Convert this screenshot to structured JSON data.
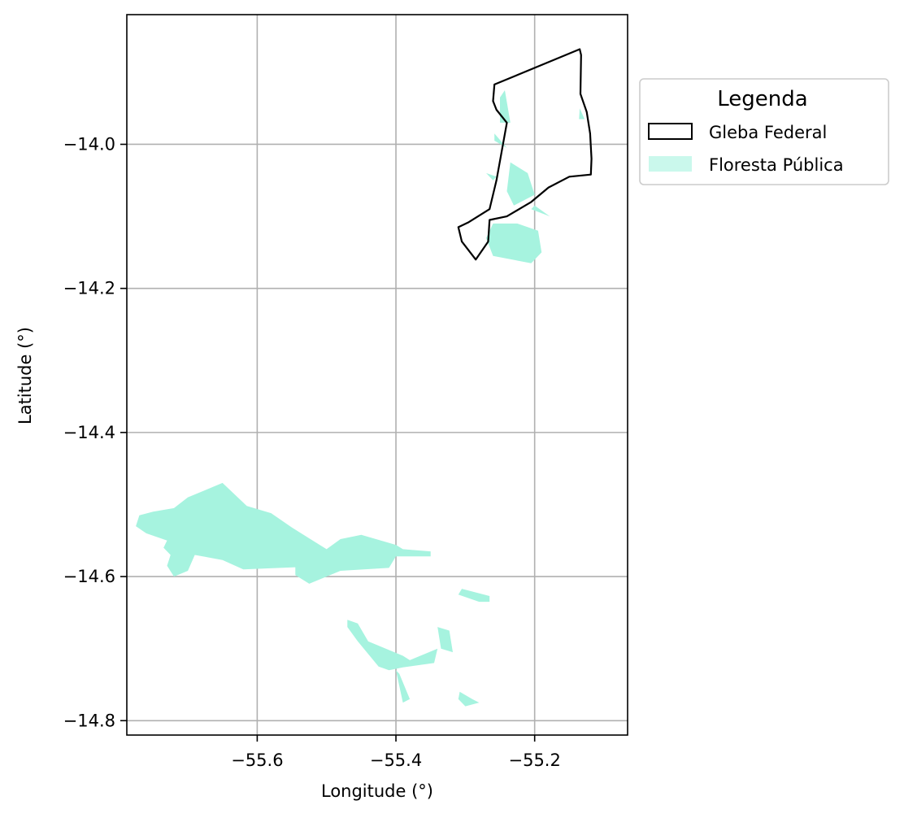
{
  "chart_data": {
    "type": "map",
    "xlabel": "Longitude (°)",
    "ylabel": "Latitude (°)",
    "xlim": [
      -55.788,
      -55.066
    ],
    "ylim": [
      -14.82,
      -13.82
    ],
    "xticks": [
      -55.6,
      -55.4,
      -55.2
    ],
    "xtick_labels": [
      "−55.6",
      "−55.4",
      "−55.2"
    ],
    "yticks": [
      -14.0,
      -14.2,
      -14.4,
      -14.6,
      -14.8
    ],
    "ytick_labels": [
      "−14.0",
      "−14.2",
      "−14.4",
      "−14.6",
      "−14.8"
    ],
    "grid": true,
    "legend": {
      "title": "Legenda",
      "placement": "outside upper right",
      "entries": [
        {
          "label": "Gleba Federal",
          "style": "outline",
          "color": "#000000"
        },
        {
          "label": "Floresta Pública",
          "style": "fill",
          "color": "#a6f3df"
        }
      ]
    },
    "colors": {
      "floresta": "#a6f3df",
      "gleba_edge": "#000000",
      "grid": "#b0b0b0"
    },
    "gleba_federal": [
      [
        -55.258,
        -13.917
      ],
      [
        -55.135,
        -13.868
      ],
      [
        -55.133,
        -13.876
      ],
      [
        -55.134,
        -13.93
      ],
      [
        -55.125,
        -13.955
      ],
      [
        -55.12,
        -13.985
      ],
      [
        -55.118,
        -14.02
      ],
      [
        -55.119,
        -14.042
      ],
      [
        -55.15,
        -14.045
      ],
      [
        -55.18,
        -14.06
      ],
      [
        -55.205,
        -14.08
      ],
      [
        -55.24,
        -14.1
      ],
      [
        -55.265,
        -14.105
      ],
      [
        -55.267,
        -14.135
      ],
      [
        -55.285,
        -14.16
      ],
      [
        -55.305,
        -14.135
      ],
      [
        -55.31,
        -14.115
      ],
      [
        -55.295,
        -14.108
      ],
      [
        -55.265,
        -14.09
      ],
      [
        -55.255,
        -14.05
      ],
      [
        -55.24,
        -13.97
      ],
      [
        -55.255,
        -13.952
      ],
      [
        -55.26,
        -13.94
      ],
      [
        -55.258,
        -13.917
      ]
    ],
    "floresta_publica": [
      [
        [
          -55.25,
          -13.935
        ],
        [
          -55.243,
          -13.925
        ],
        [
          -55.235,
          -13.97
        ],
        [
          -55.25,
          -13.97
        ]
      ],
      [
        [
          -55.258,
          -13.995
        ],
        [
          -55.24,
          -14.005
        ],
        [
          -55.258,
          -13.985
        ]
      ],
      [
        [
          -55.27,
          -14.04
        ],
        [
          -55.255,
          -14.045
        ],
        [
          -55.26,
          -14.05
        ]
      ],
      [
        [
          -55.235,
          -14.025
        ],
        [
          -55.21,
          -14.04
        ],
        [
          -55.2,
          -14.07
        ],
        [
          -55.23,
          -14.085
        ],
        [
          -55.24,
          -14.065
        ]
      ],
      [
        [
          -55.2,
          -14.085
        ],
        [
          -55.178,
          -14.1
        ],
        [
          -55.205,
          -14.09
        ]
      ],
      [
        [
          -55.135,
          -13.95
        ],
        [
          -55.128,
          -13.965
        ],
        [
          -55.136,
          -13.965
        ]
      ],
      [
        [
          -55.26,
          -14.11
        ],
        [
          -55.225,
          -14.11
        ],
        [
          -55.195,
          -14.12
        ],
        [
          -55.19,
          -14.15
        ],
        [
          -55.205,
          -14.165
        ],
        [
          -55.26,
          -14.155
        ],
        [
          -55.27,
          -14.13
        ]
      ],
      [
        [
          -55.77,
          -14.515
        ],
        [
          -55.75,
          -14.51
        ],
        [
          -55.72,
          -14.505
        ],
        [
          -55.7,
          -14.49
        ],
        [
          -55.67,
          -14.478
        ],
        [
          -55.65,
          -14.47
        ],
        [
          -55.615,
          -14.502
        ],
        [
          -55.58,
          -14.512
        ],
        [
          -55.55,
          -14.532
        ],
        [
          -55.5,
          -14.562
        ],
        [
          -55.48,
          -14.548
        ],
        [
          -55.45,
          -14.542
        ],
        [
          -55.4,
          -14.556
        ],
        [
          -55.39,
          -14.562
        ],
        [
          -55.35,
          -14.565
        ],
        [
          -55.35,
          -14.572
        ],
        [
          -55.4,
          -14.572
        ],
        [
          -55.41,
          -14.588
        ],
        [
          -55.48,
          -14.592
        ],
        [
          -55.525,
          -14.61
        ],
        [
          -55.545,
          -14.598
        ],
        [
          -55.545,
          -14.587
        ],
        [
          -55.62,
          -14.59
        ],
        [
          -55.65,
          -14.577
        ],
        [
          -55.69,
          -14.57
        ],
        [
          -55.7,
          -14.592
        ],
        [
          -55.72,
          -14.6
        ],
        [
          -55.73,
          -14.585
        ],
        [
          -55.725,
          -14.57
        ],
        [
          -55.735,
          -14.56
        ],
        [
          -55.73,
          -14.55
        ],
        [
          -55.76,
          -14.54
        ],
        [
          -55.775,
          -14.53
        ]
      ],
      [
        [
          -55.305,
          -14.617
        ],
        [
          -55.265,
          -14.627
        ],
        [
          -55.265,
          -14.635
        ],
        [
          -55.28,
          -14.635
        ],
        [
          -55.31,
          -14.625
        ]
      ],
      [
        [
          -55.47,
          -14.66
        ],
        [
          -55.455,
          -14.665
        ],
        [
          -55.44,
          -14.69
        ],
        [
          -55.39,
          -14.71
        ],
        [
          -55.38,
          -14.716
        ],
        [
          -55.34,
          -14.7
        ],
        [
          -55.345,
          -14.72
        ],
        [
          -55.39,
          -14.726
        ],
        [
          -55.41,
          -14.73
        ],
        [
          -55.425,
          -14.725
        ],
        [
          -55.455,
          -14.69
        ],
        [
          -55.47,
          -14.67
        ]
      ],
      [
        [
          -55.34,
          -14.67
        ],
        [
          -55.323,
          -14.675
        ],
        [
          -55.318,
          -14.705
        ],
        [
          -55.335,
          -14.7
        ]
      ],
      [
        [
          -55.4,
          -14.73
        ],
        [
          -55.39,
          -14.775
        ],
        [
          -55.38,
          -14.77
        ],
        [
          -55.395,
          -14.735
        ]
      ],
      [
        [
          -55.308,
          -14.76
        ],
        [
          -55.29,
          -14.77
        ],
        [
          -55.28,
          -14.775
        ],
        [
          -55.3,
          -14.78
        ],
        [
          -55.31,
          -14.77
        ]
      ]
    ]
  }
}
